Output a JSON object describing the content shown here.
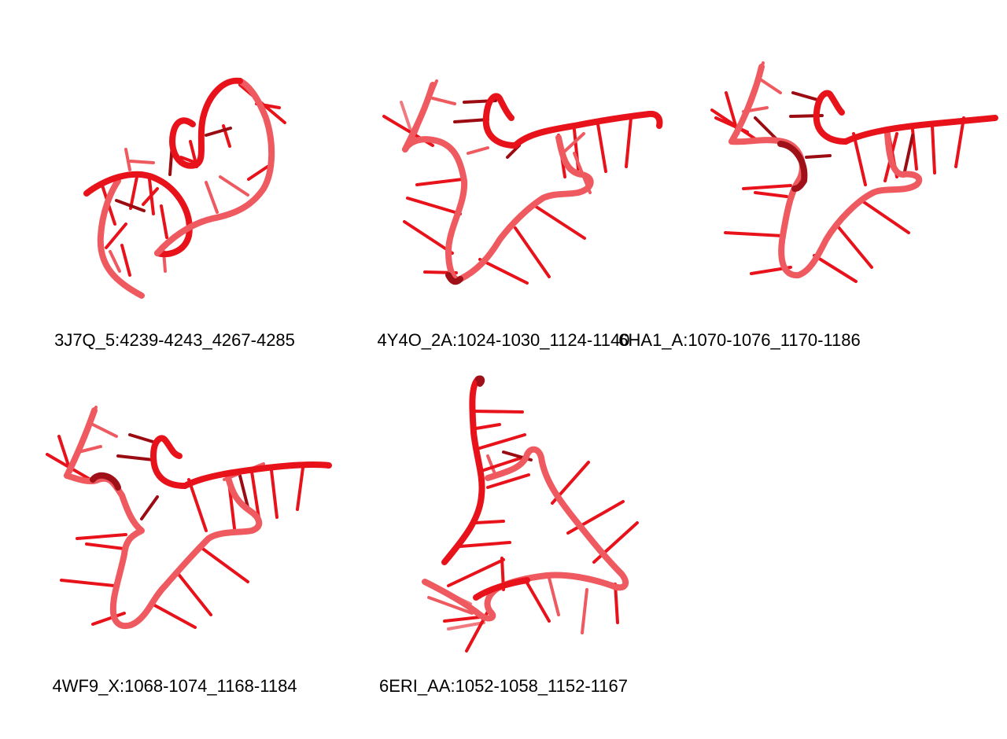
{
  "colors": {
    "backbone": "#e8121b",
    "backbone_light": "#ee5a60",
    "backbone_dark": "#a01018",
    "base": "#e8121b",
    "base_light": "#f07a80",
    "base_dark": "#9a0c12"
  },
  "structures": [
    {
      "label": "3J7Q_5:4239-4243_4267-4285"
    },
    {
      "label": "4Y4O_2A:1024-1030_1124-1140"
    },
    {
      "label": "6HA1_A:1070-1076_1170-1186"
    },
    {
      "label": "4WF9_X:1068-1074_1168-1184"
    },
    {
      "label": "6ERI_AA:1052-1058_1152-1167"
    }
  ]
}
